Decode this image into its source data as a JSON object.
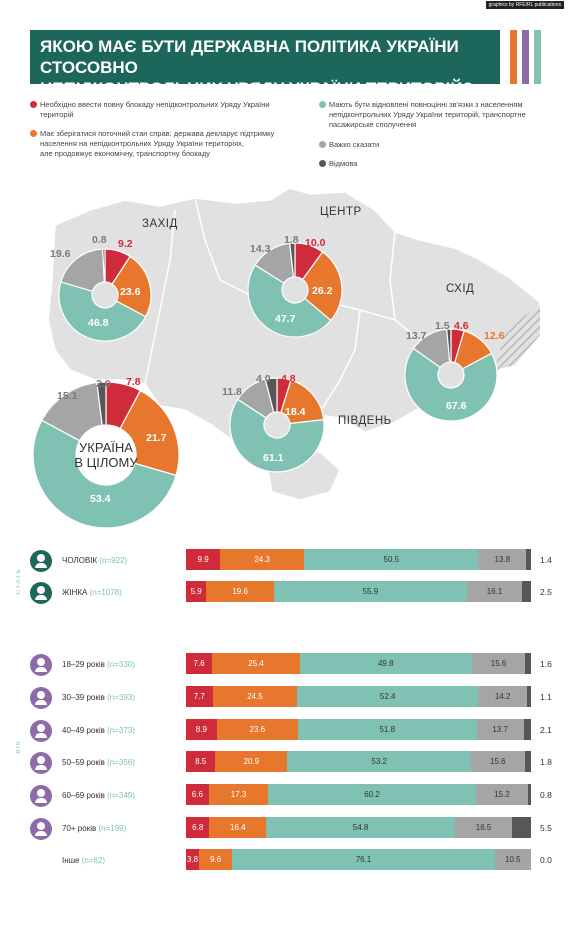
{
  "credit": "graphics by RFE/RL publications",
  "title_lines": [
    "ЯКОЮ МАЄ БУТИ ДЕРЖАВНА ПОЛІТИКА УКРАЇНИ СТОСОВНО",
    "НЕПІДКОНТРОЛЬНИХ УРЯДУ УКРАЇНИ ТЕРИТОРІЙ?"
  ],
  "colors": {
    "red": "#d02b3a",
    "orange": "#e8772e",
    "teal": "#7fc2b3",
    "gray": "#a5a5a5",
    "dark": "#575757",
    "title_bg": "#1c665c",
    "purple": "#8d6aa8",
    "map": "#e1e1e1"
  },
  "stripe_colors": [
    "#e8772e",
    "#8d6aa8",
    "#7fc2b3"
  ],
  "legend": [
    {
      "key": "red",
      "text": [
        "Необхідно ввести повну блокаду непідконтрольних Уряду України",
        "територій"
      ]
    },
    {
      "key": "orange",
      "text": [
        "Має зберігатися поточний стан справ: держава декларує підтримку",
        "населення на непідконтрольних Уряду України територіях,",
        "але продовжує економічну, транспортну блокаду"
      ]
    },
    {
      "key": "teal",
      "text": [
        "Мають бути відновлені повноцінні зв'язки з населенням",
        "непідконтрольних Уряду України територій, транспортне",
        "пасажирське сполучення"
      ]
    },
    {
      "key": "gray",
      "text": [
        "Важко сказати"
      ]
    },
    {
      "key": "dark",
      "text": [
        "Відмова"
      ]
    }
  ],
  "chart_data": [
    {
      "type": "pie",
      "title": "",
      "categories_keys": [
        "red",
        "orange",
        "teal",
        "gray",
        "dark"
      ],
      "regions": [
        {
          "name": "ЗАХІД",
          "values": [
            9.2,
            23.6,
            46.8,
            19.6,
            0.8
          ]
        },
        {
          "name": "ЦЕНТР",
          "values": [
            10.0,
            26.2,
            47.7,
            14.3,
            1.8
          ]
        },
        {
          "name": "СХІД",
          "values": [
            4.6,
            12.6,
            67.6,
            13.7,
            1.5
          ]
        },
        {
          "name": "ПІВДЕНЬ",
          "values": [
            4.8,
            18.4,
            61.1,
            11.8,
            4.0
          ]
        },
        {
          "name": "УКРАЇНА В ЦІЛОМУ",
          "values": [
            7.8,
            21.7,
            53.4,
            15.1,
            2.0
          ]
        }
      ]
    },
    {
      "type": "bar",
      "orientation": "horizontal-stacked",
      "series_keys": [
        "red",
        "orange",
        "teal",
        "gray",
        "dark"
      ],
      "groups": [
        {
          "name": "СТАТЬ",
          "rows": [
            {
              "label": "ЧОЛОВІК",
              "n": "(n=922)",
              "values": [
                9.9,
                24.3,
                50.5,
                13.8,
                1.4
              ]
            },
            {
              "label": "ЖІНКА",
              "n": "(n=1078)",
              "values": [
                5.9,
                19.6,
                55.9,
                16.1,
                2.5
              ]
            }
          ]
        },
        {
          "name": "ВІК",
          "rows": [
            {
              "label": "18–29 років",
              "n": "(n=330)",
              "values": [
                7.6,
                25.4,
                49.8,
                15.6,
                1.6
              ]
            },
            {
              "label": "30–39 років",
              "n": "(n=393)",
              "values": [
                7.7,
                24.5,
                52.4,
                14.2,
                1.1
              ]
            },
            {
              "label": "40–49 років",
              "n": "(n=373)",
              "values": [
                8.9,
                23.6,
                51.8,
                13.7,
                2.1
              ]
            },
            {
              "label": "50–59 років",
              "n": "(n=356)",
              "values": [
                8.5,
                20.9,
                53.2,
                15.6,
                1.8
              ]
            },
            {
              "label": "60–69 років",
              "n": "(n=349)",
              "values": [
                6.6,
                17.3,
                60.2,
                15.2,
                0.8
              ]
            },
            {
              "label": "70+ років",
              "n": "(n=199)",
              "values": [
                6.8,
                16.4,
                54.8,
                16.5,
                5.5
              ]
            },
            {
              "label": "Інше",
              "n": "(n=62)",
              "values": [
                3.8,
                9.6,
                76.1,
                10.5,
                0.0
              ]
            }
          ]
        }
      ]
    }
  ]
}
